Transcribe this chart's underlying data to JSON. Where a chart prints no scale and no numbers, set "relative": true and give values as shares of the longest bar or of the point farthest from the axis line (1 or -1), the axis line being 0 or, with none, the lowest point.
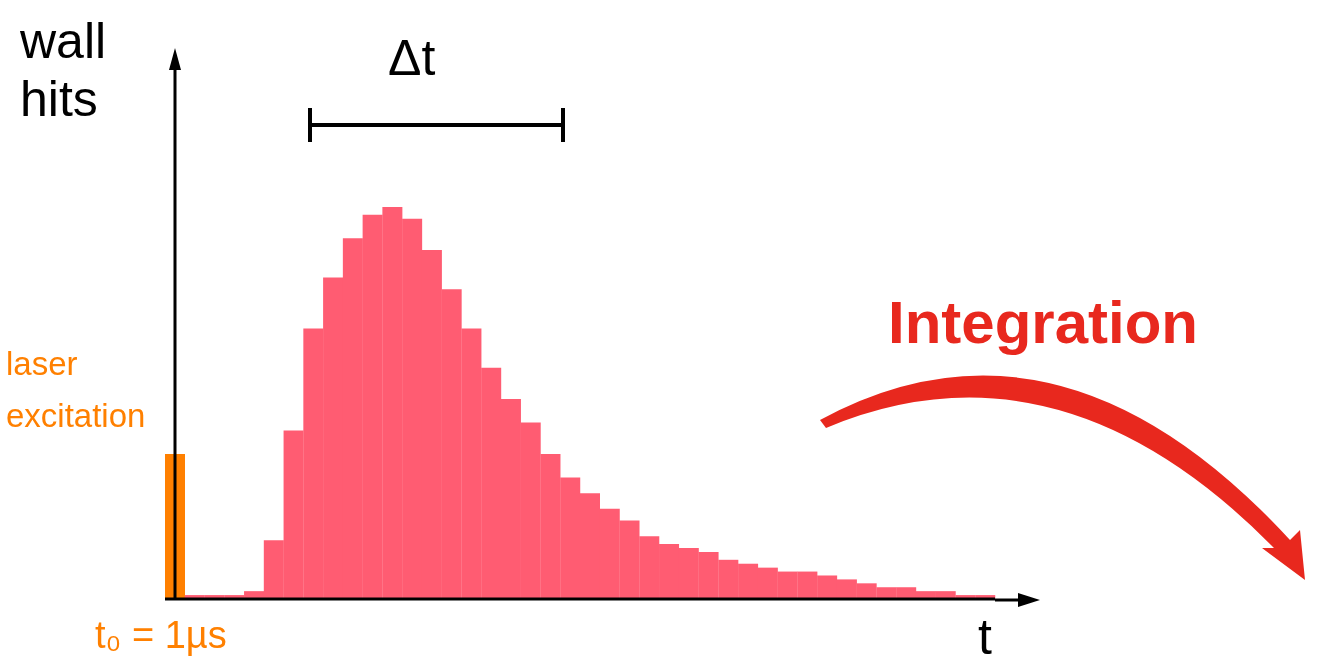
{
  "chart_data": {
    "type": "bar",
    "relative": true,
    "ylabel": "wall hits",
    "xlabel": "t",
    "categories": [
      null,
      null,
      null,
      null,
      null,
      null,
      null,
      null,
      null,
      null,
      null,
      null,
      null,
      null,
      null,
      null,
      null,
      null,
      null,
      null,
      null,
      null,
      null,
      null,
      null,
      null,
      null,
      null,
      null,
      null,
      null,
      null,
      null,
      null,
      null,
      null,
      null,
      null,
      null,
      null,
      null,
      null
    ],
    "values": [
      0.37,
      0.01,
      0.01,
      0.01,
      0.02,
      0.15,
      0.43,
      0.69,
      0.82,
      0.92,
      0.98,
      1,
      0.97,
      0.89,
      0.79,
      0.69,
      0.59,
      0.51,
      0.45,
      0.37,
      0.31,
      0.27,
      0.23,
      0.2,
      0.16,
      0.14,
      0.13,
      0.12,
      0.1,
      0.09,
      0.08,
      0.07,
      0.07,
      0.06,
      0.05,
      0.04,
      0.03,
      0.03,
      0.02,
      0.02,
      0.01,
      0.01
    ],
    "colors": [
      "#ff8000",
      "#ff5c72",
      "#ff5c72",
      "#ff5c72",
      "#ff5c72",
      "#ff5c72",
      "#ff5c72",
      "#ff5c72",
      "#ff5c72",
      "#ff5c72",
      "#ff5c72",
      "#ff5c72",
      "#ff5c72",
      "#ff5c72",
      "#ff5c72",
      "#ff5c72",
      "#ff5c72",
      "#ff5c72",
      "#ff5c72",
      "#ff5c72",
      "#ff5c72",
      "#ff5c72",
      "#ff5c72",
      "#ff5c72",
      "#ff5c72",
      "#ff5c72",
      "#ff5c72",
      "#ff5c72",
      "#ff5c72",
      "#ff5c72",
      "#ff5c72",
      "#ff5c72",
      "#ff5c72",
      "#ff5c72",
      "#ff5c72",
      "#ff5c72",
      "#ff5c72",
      "#ff5c72",
      "#ff5c72",
      "#ff5c72",
      "#ff5c72",
      "#ff5c72"
    ],
    "annotations": [
      "laser excitation",
      "Δt",
      "t₀ = 1µs",
      "Integration"
    ]
  }
}
